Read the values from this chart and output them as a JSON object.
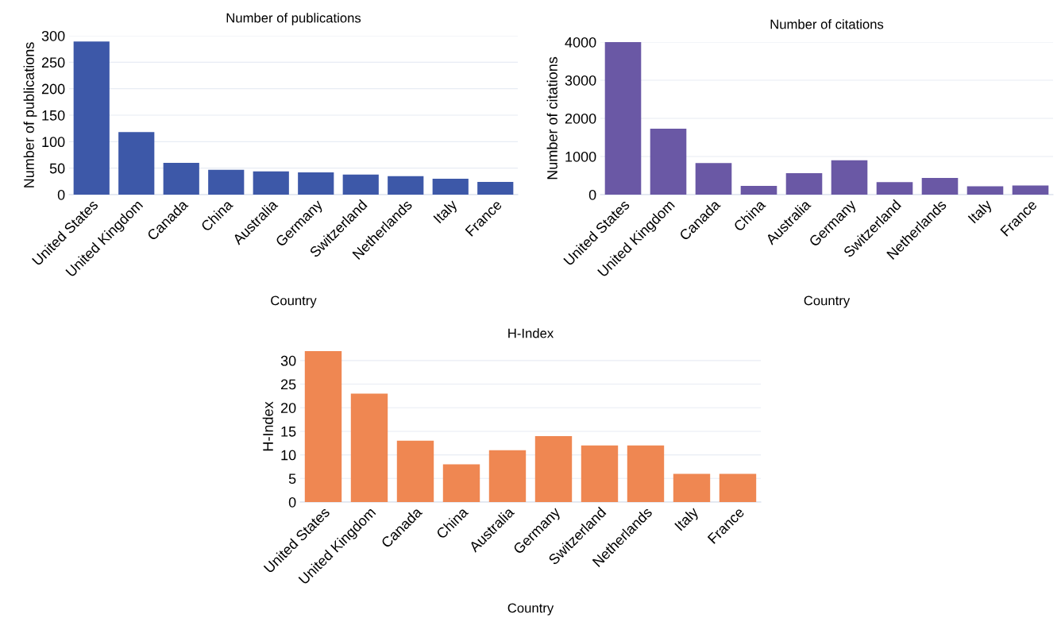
{
  "chart_data": [
    {
      "type": "bar",
      "title": "Number of publications",
      "xlabel": "Country",
      "ylabel": "Number of publications",
      "categories": [
        "United States",
        "United Kingdom",
        "Canada",
        "China",
        "Australia",
        "Germany",
        "Switzerland",
        "Netherlands",
        "Italy",
        "France"
      ],
      "values": [
        289,
        118,
        60,
        47,
        44,
        42,
        38,
        35,
        30,
        24
      ],
      "color": "#3d58a8",
      "ylim": [
        0,
        300
      ],
      "yticks": [
        0,
        50,
        100,
        150,
        200,
        250,
        300
      ],
      "grid": "y",
      "legend": false
    },
    {
      "type": "bar",
      "title": "Number of citations",
      "xlabel": "Country",
      "ylabel": "Number of citations",
      "categories": [
        "United States",
        "United Kingdom",
        "Canada",
        "China",
        "Australia",
        "Germany",
        "Switzerland",
        "Netherlands",
        "Italy",
        "France"
      ],
      "values": [
        4000,
        1730,
        830,
        230,
        560,
        900,
        330,
        440,
        220,
        240
      ],
      "color": "#6a58a5",
      "ylim": [
        0,
        4000
      ],
      "yticks": [
        0,
        1000,
        2000,
        3000,
        4000
      ],
      "grid": "y",
      "legend": false
    },
    {
      "type": "bar",
      "title": "H-Index",
      "xlabel": "Country",
      "ylabel": "H-Index",
      "categories": [
        "United States",
        "United Kingdom",
        "Canada",
        "China",
        "Australia",
        "Germany",
        "Switzerland",
        "Netherlands",
        "Italy",
        "France"
      ],
      "values": [
        32,
        23,
        13,
        8,
        11,
        14,
        12,
        12,
        6,
        6
      ],
      "color": "#ef8752",
      "ylim": [
        0,
        32
      ],
      "yticks": [
        0,
        5,
        10,
        15,
        20,
        25,
        30
      ],
      "grid": "y",
      "legend": false
    }
  ]
}
